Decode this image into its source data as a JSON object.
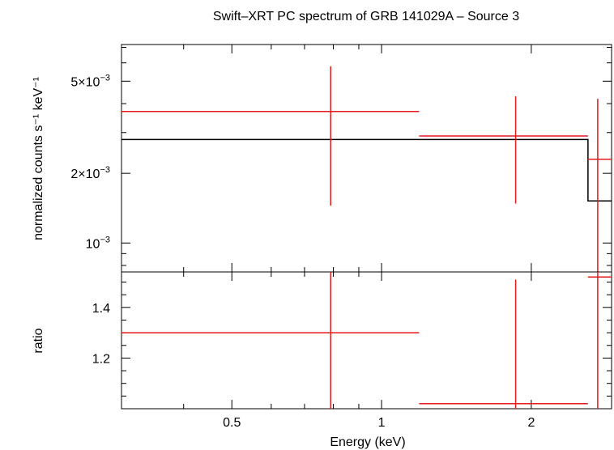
{
  "chart_data": [
    {
      "type": "scatter",
      "panel": "spectrum",
      "title": "Swift–XRT PC spectrum of GRB 141029A – Source 3",
      "ylabel": "normalized counts s⁻¹ keV⁻¹",
      "xlabel": "",
      "x_scale": "log",
      "y_scale": "log",
      "xlim": [
        0.3,
        2.9
      ],
      "ylim": [
        0.00075,
        0.0072
      ],
      "x_ticks": [
        {
          "v": 0.5,
          "label": "0.5"
        },
        {
          "v": 1,
          "label": "1"
        },
        {
          "v": 2,
          "label": "2"
        }
      ],
      "y_ticks": [
        {
          "v": 0.005,
          "base": "5×10",
          "exp": "−3"
        },
        {
          "v": 0.002,
          "base": "2×10",
          "exp": "−3"
        },
        {
          "v": 0.001,
          "base": "10",
          "exp": "−3"
        }
      ],
      "data_color": "#e41a1c",
      "model_color": "#000000",
      "data": [
        {
          "x": 0.79,
          "x_lo": 0.3,
          "x_hi": 1.19,
          "y": 0.0037,
          "y_lo": 0.00145,
          "y_hi": 0.0058
        },
        {
          "x": 1.86,
          "x_lo": 1.19,
          "x_hi": 2.6,
          "y": 0.0029,
          "y_lo": 0.00148,
          "y_hi": 0.0043
        },
        {
          "x": 2.72,
          "x_lo": 2.6,
          "x_hi": 2.9,
          "y": 0.0023,
          "y_lo": 0.00075,
          "y_hi": 0.0042
        }
      ],
      "model": [
        {
          "x_lo": 0.3,
          "x_hi": 2.6,
          "y": 0.0028
        },
        {
          "x_lo": 2.6,
          "x_hi": 2.9,
          "y": 0.00152
        }
      ]
    },
    {
      "type": "scatter",
      "panel": "ratio",
      "title": "",
      "ylabel": "ratio",
      "xlabel": "Energy (keV)",
      "x_scale": "log",
      "y_scale": "linear",
      "xlim": [
        0.3,
        2.9
      ],
      "ylim": [
        1.0,
        1.54
      ],
      "x_ticks": [
        {
          "v": 0.5,
          "label": "0.5"
        },
        {
          "v": 1,
          "label": "1"
        },
        {
          "v": 2,
          "label": "2"
        }
      ],
      "y_ticks": [
        {
          "v": 1.2,
          "label": "1.2"
        },
        {
          "v": 1.4,
          "label": "1.4"
        }
      ],
      "data_color": "#e41a1c",
      "data": [
        {
          "x": 0.79,
          "x_lo": 0.3,
          "x_hi": 1.19,
          "y": 1.3,
          "y_lo": 1.0,
          "y_hi": 1.54
        },
        {
          "x": 1.86,
          "x_lo": 1.19,
          "x_hi": 2.6,
          "y": 1.02,
          "y_lo": 1.0,
          "y_hi": 1.51
        },
        {
          "x": 2.72,
          "x_lo": 2.6,
          "x_hi": 2.9,
          "y": 1.52,
          "y_lo": 1.0,
          "y_hi": 1.54
        }
      ]
    }
  ]
}
